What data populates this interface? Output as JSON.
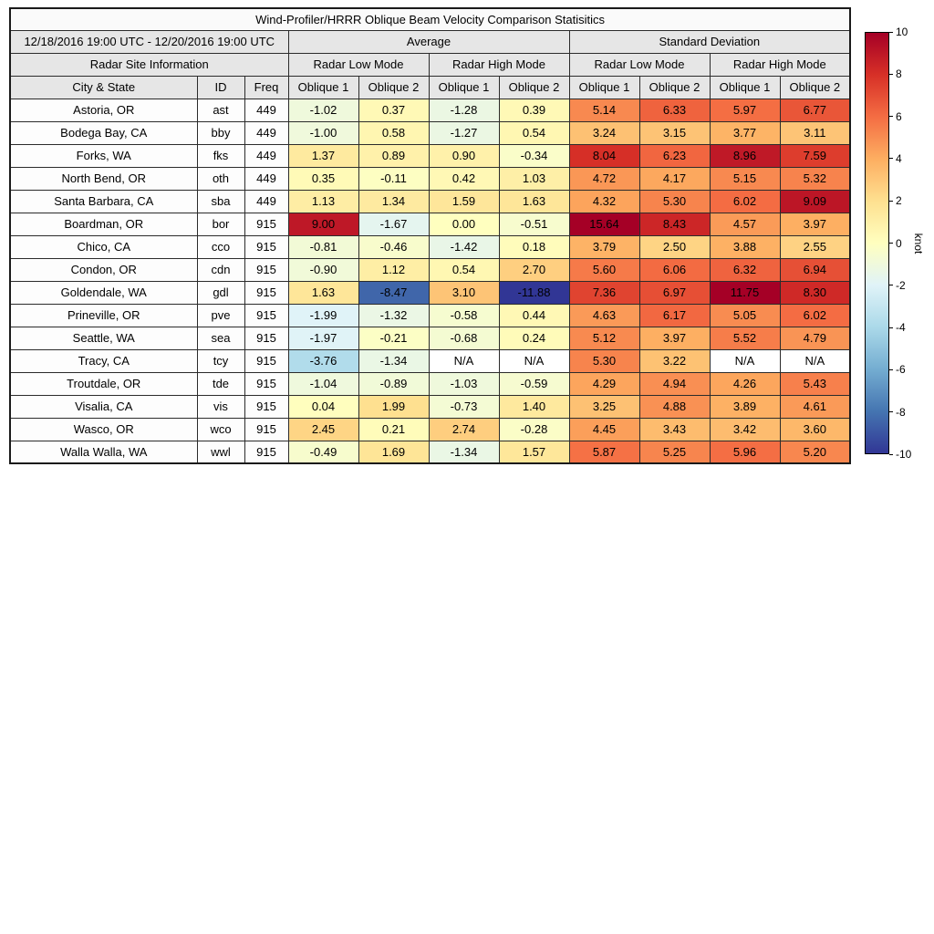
{
  "chart_data": {
    "type": "heatmap",
    "title": "Wind-Profiler/HRRR Oblique Beam Velocity Comparison Statisitics",
    "date_range": "12/18/2016 19:00 UTC - 12/20/2016 19:00 UTC",
    "site_info_header": "Radar Site Information",
    "group_headers": [
      "Average",
      "Standard Deviation"
    ],
    "subgroup_headers": [
      "Radar Low Mode",
      "Radar High Mode",
      "Radar Low Mode",
      "Radar High Mode"
    ],
    "columns": [
      "City & State",
      "ID",
      "Freq",
      "Oblique 1",
      "Oblique 2",
      "Oblique 1",
      "Oblique 2",
      "Oblique 1",
      "Oblique 2",
      "Oblique 1",
      "Oblique 2"
    ],
    "rows": [
      {
        "city": "Astoria, OR",
        "id": "ast",
        "freq": "449",
        "values": [
          -1.02,
          0.37,
          -1.28,
          0.39,
          5.14,
          6.33,
          5.97,
          6.77
        ]
      },
      {
        "city": "Bodega Bay, CA",
        "id": "bby",
        "freq": "449",
        "values": [
          -1.0,
          0.58,
          -1.27,
          0.54,
          3.24,
          3.15,
          3.77,
          3.11
        ]
      },
      {
        "city": "Forks, WA",
        "id": "fks",
        "freq": "449",
        "values": [
          1.37,
          0.89,
          0.9,
          -0.34,
          8.04,
          6.23,
          8.96,
          7.59
        ]
      },
      {
        "city": "North Bend, OR",
        "id": "oth",
        "freq": "449",
        "values": [
          0.35,
          -0.11,
          0.42,
          1.03,
          4.72,
          4.17,
          5.15,
          5.32
        ]
      },
      {
        "city": "Santa Barbara, CA",
        "id": "sba",
        "freq": "449",
        "values": [
          1.13,
          1.34,
          1.59,
          1.63,
          4.32,
          5.3,
          6.02,
          9.09
        ]
      },
      {
        "city": "Boardman, OR",
        "id": "bor",
        "freq": "915",
        "values": [
          9.0,
          -1.67,
          0.0,
          -0.51,
          15.64,
          8.43,
          4.57,
          3.97
        ]
      },
      {
        "city": "Chico, CA",
        "id": "cco",
        "freq": "915",
        "values": [
          -0.81,
          -0.46,
          -1.42,
          0.18,
          3.79,
          2.5,
          3.88,
          2.55
        ]
      },
      {
        "city": "Condon, OR",
        "id": "cdn",
        "freq": "915",
        "values": [
          -0.9,
          1.12,
          0.54,
          2.7,
          5.6,
          6.06,
          6.32,
          6.94
        ]
      },
      {
        "city": "Goldendale, WA",
        "id": "gdl",
        "freq": "915",
        "values": [
          1.63,
          -8.47,
          3.1,
          -11.88,
          7.36,
          6.97,
          11.75,
          8.3
        ]
      },
      {
        "city": "Prineville, OR",
        "id": "pve",
        "freq": "915",
        "values": [
          -1.99,
          -1.32,
          -0.58,
          0.44,
          4.63,
          6.17,
          5.05,
          6.02
        ]
      },
      {
        "city": "Seattle, WA",
        "id": "sea",
        "freq": "915",
        "values": [
          -1.97,
          -0.21,
          -0.68,
          0.24,
          5.12,
          3.97,
          5.52,
          4.79
        ]
      },
      {
        "city": "Tracy, CA",
        "id": "tcy",
        "freq": "915",
        "values": [
          -3.76,
          -1.34,
          "N/A",
          "N/A",
          5.3,
          3.22,
          "N/A",
          "N/A"
        ]
      },
      {
        "city": "Troutdale, OR",
        "id": "tde",
        "freq": "915",
        "values": [
          -1.04,
          -0.89,
          -1.03,
          -0.59,
          4.29,
          4.94,
          4.26,
          5.43
        ]
      },
      {
        "city": "Visalia, CA",
        "id": "vis",
        "freq": "915",
        "values": [
          0.04,
          1.99,
          -0.73,
          1.4,
          3.25,
          4.88,
          3.89,
          4.61
        ]
      },
      {
        "city": "Wasco, OR",
        "id": "wco",
        "freq": "915",
        "values": [
          2.45,
          0.21,
          2.74,
          -0.28,
          4.45,
          3.43,
          3.42,
          3.6
        ]
      },
      {
        "city": "Walla Walla, WA",
        "id": "wwl",
        "freq": "915",
        "values": [
          -0.49,
          1.69,
          -1.34,
          1.57,
          5.87,
          5.25,
          5.96,
          5.2
        ]
      }
    ],
    "colorbar": {
      "min": -10,
      "max": 10,
      "ticks": [
        10,
        8,
        6,
        4,
        2,
        0,
        -2,
        -4,
        -6,
        -8,
        -10
      ],
      "label": "knot",
      "colormap": "RdYlBu_r",
      "colors": [
        "#313695",
        "#4575b1",
        "#74add1",
        "#abd9e9",
        "#e0f3f8",
        "#ffffbf",
        "#fee090",
        "#fdae61",
        "#f46d43",
        "#d73027",
        "#a50026"
      ]
    }
  }
}
